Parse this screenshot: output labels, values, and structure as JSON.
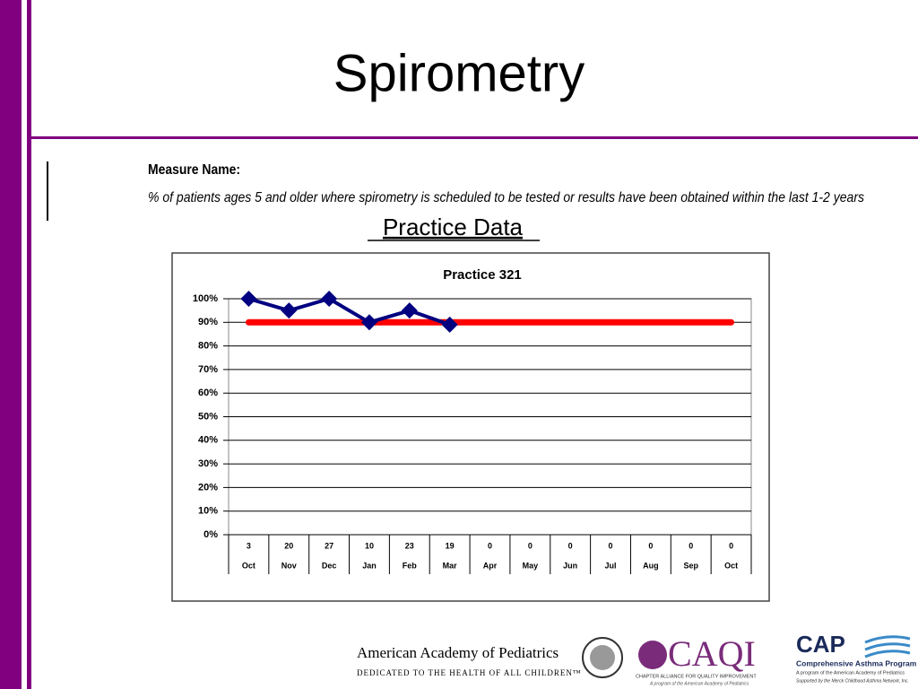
{
  "slide_title": "Spirometry",
  "measure_heading": "Measure Name:",
  "measure_text": "% of patients ages 5 and older where spirometry is scheduled to be tested or results have been obtained within the last 1-2 years",
  "section_title": "Practice Data",
  "chart_data": {
    "type": "line",
    "title": "Practice 321",
    "categories": [
      "Oct",
      "Nov",
      "Dec",
      "Jan",
      "Feb",
      "Mar",
      "Apr",
      "May",
      "Jun",
      "Jul",
      "Aug",
      "Sep",
      "Oct"
    ],
    "counts": [
      3,
      20,
      27,
      10,
      23,
      19,
      0,
      0,
      0,
      0,
      0,
      0,
      0
    ],
    "series": [
      {
        "color": "#000080",
        "values": [
          100,
          95,
          100,
          90,
          95,
          89,
          null,
          null,
          null,
          null,
          null,
          null,
          null
        ]
      },
      {
        "color": "#ff0000",
        "values": [
          90,
          90,
          90,
          90,
          90,
          90,
          90,
          90,
          90,
          90,
          90,
          90,
          90
        ]
      }
    ],
    "ylim": [
      0,
      100
    ],
    "yticks": [
      {
        "value": 0,
        "label": "0%"
      },
      {
        "value": 10,
        "label": "10%"
      },
      {
        "value": 20,
        "label": "20%"
      },
      {
        "value": 30,
        "label": "30%"
      },
      {
        "value": 40,
        "label": "40%"
      },
      {
        "value": 50,
        "label": "50%"
      },
      {
        "value": 60,
        "label": "60%"
      },
      {
        "value": 70,
        "label": "70%"
      },
      {
        "value": 80,
        "label": "80%"
      },
      {
        "value": 90,
        "label": "90%"
      },
      {
        "value": 100,
        "label": "100%"
      }
    ],
    "grid": true
  },
  "footer": {
    "aap_name": "American Academy of Pediatrics",
    "aap_tagline": "DEDICATED TO THE HEALTH OF ALL CHILDREN™",
    "caqi": "CAQI",
    "caqi_sub": "CHAPTER ALLIANCE FOR QUALITY IMPROVEMENT",
    "caqi_note": "A program of the American Academy of Pediatrics",
    "cap": "CAP",
    "cap_sub": "Comprehensive Asthma Program",
    "cap_note": "A program of the American Academy of Pediatrics",
    "cap_support": "Supported by the Merck Childhood Asthma Network, Inc."
  }
}
